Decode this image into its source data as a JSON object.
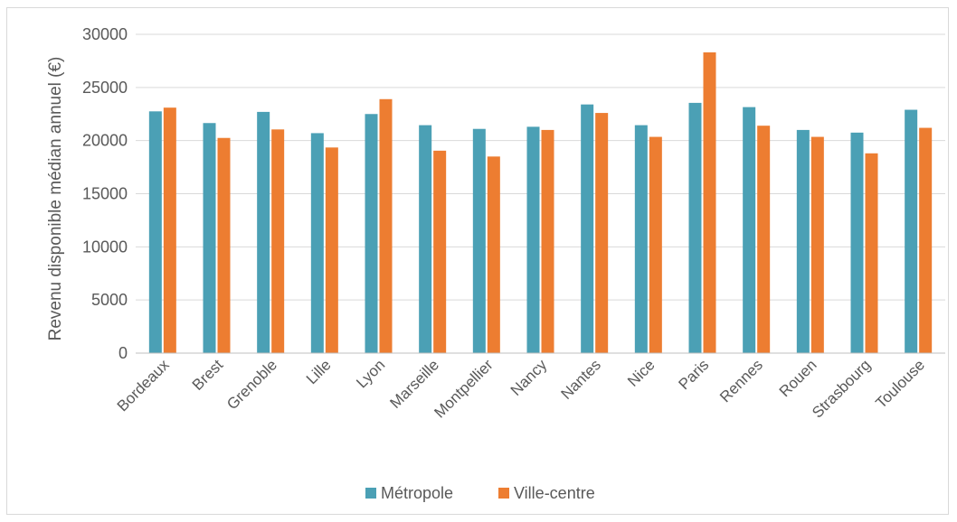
{
  "chart_data": {
    "type": "bar",
    "title": "",
    "xlabel": "",
    "ylabel": "Revenu disponible médian annuel (€)",
    "ylim": [
      0,
      30000
    ],
    "yticks": [
      0,
      5000,
      10000,
      15000,
      20000,
      25000,
      30000
    ],
    "grid": true,
    "legend": "bottom",
    "categories": [
      "Bordeaux",
      "Brest",
      "Grenoble",
      "Lille",
      "Lyon",
      "Marseille",
      "Montpellier",
      "Nancy",
      "Nantes",
      "Nice",
      "Paris",
      "Rennes",
      "Rouen",
      "Strasbourg",
      "Toulouse"
    ],
    "series": [
      {
        "name": "Métropole",
        "color": "#4BA0B5",
        "values": [
          22750,
          21650,
          22700,
          20700,
          22500,
          21450,
          21100,
          21300,
          23400,
          21450,
          23550,
          23150,
          21000,
          20750,
          22900
        ]
      },
      {
        "name": "Ville-centre",
        "color": "#ED7D31",
        "values": [
          23100,
          20250,
          21050,
          19350,
          23900,
          19050,
          18500,
          21000,
          22600,
          20350,
          28300,
          21400,
          20350,
          18800,
          21200
        ]
      }
    ]
  }
}
